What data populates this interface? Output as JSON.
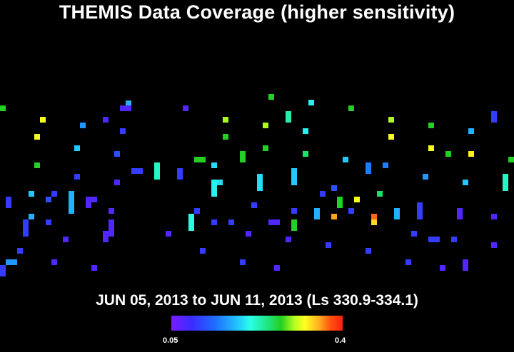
{
  "title": "THEMIS Data Coverage (higher sensitivity)",
  "subtitle": "JUN 05, 2013 to JUN 11, 2013 (Ls 330.9-334.1)",
  "colorbar": {
    "min_label": "0.05",
    "max_label": "0.4"
  },
  "chart_data": {
    "type": "heatmap",
    "title": "THEMIS Data Coverage (higher sensitivity)",
    "subtitle": "JUN 05, 2013 to JUN 11, 2013 (Ls 330.9-334.1)",
    "color_range": [
      0.05,
      0.4
    ],
    "colorbar_labels": [
      "0.05",
      "0.4"
    ],
    "colors": {
      "background": "#000000",
      "scale": [
        "#7a1cff",
        "#3a2cff",
        "#1f6bff",
        "#22c0ff",
        "#2affe8",
        "#20e890",
        "#22d020",
        "#b8ff20",
        "#ffff20",
        "#ffb020",
        "#ff5010",
        "#ff2010"
      ]
    }
  }
}
